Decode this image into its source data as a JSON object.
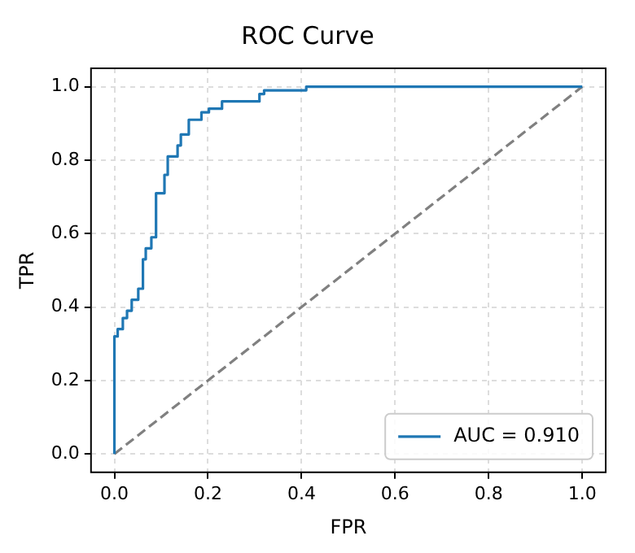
{
  "chart_data": {
    "type": "step",
    "title": "ROC Curve",
    "xlabel": "FPR",
    "ylabel": "TPR",
    "xlim": [
      -0.05,
      1.05
    ],
    "ylim": [
      -0.05,
      1.05
    ],
    "xticks": [
      {
        "value": 0,
        "label": "0.0"
      },
      {
        "value": 0.2,
        "label": "0.2"
      },
      {
        "value": 0.4,
        "label": "0.4"
      },
      {
        "value": 0.6,
        "label": "0.6"
      },
      {
        "value": 0.8,
        "label": "0.8"
      },
      {
        "value": 1,
        "label": "1.0"
      }
    ],
    "yticks": [
      {
        "value": 0,
        "label": "0.0"
      },
      {
        "value": 0.2,
        "label": "0.2"
      },
      {
        "value": 0.4,
        "label": "0.4"
      },
      {
        "value": 0.6,
        "label": "0.6"
      },
      {
        "value": 0.8,
        "label": "0.8"
      },
      {
        "value": 1,
        "label": "1.0"
      }
    ],
    "grid": true,
    "legend": "bottom right",
    "series": [
      {
        "name": "AUC = 0.910",
        "color": "#1f77b4",
        "line_style": "solid",
        "x": [
          0,
          0,
          0.007,
          0.018,
          0.027,
          0.037,
          0.051,
          0.061,
          0.067,
          0.079,
          0.089,
          0.107,
          0.114,
          0.135,
          0.142,
          0.159,
          0.186,
          0.202,
          0.23,
          0.31,
          0.32,
          0.41,
          0.58,
          1
        ],
        "values": [
          0,
          0.26,
          0.32,
          0.34,
          0.37,
          0.39,
          0.42,
          0.45,
          0.53,
          0.56,
          0.59,
          0.71,
          0.76,
          0.81,
          0.84,
          0.87,
          0.91,
          0.93,
          0.94,
          0.96,
          0.98,
          0.99,
          1,
          1
        ]
      },
      {
        "color": "#808080",
        "type": "line",
        "line_style": "dashed",
        "x": [
          0,
          1
        ],
        "values": [
          0,
          1
        ]
      }
    ]
  }
}
